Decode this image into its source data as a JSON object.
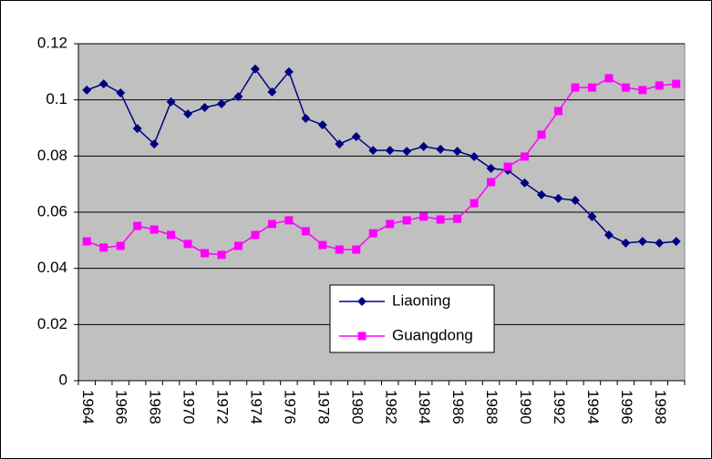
{
  "chart_data": {
    "type": "line",
    "categories": [
      "1964",
      null,
      "1966",
      null,
      "1968",
      null,
      "1970",
      null,
      "1972",
      null,
      "1974",
      null,
      "1976",
      null,
      "1978",
      null,
      "1980",
      null,
      "1982",
      null,
      "1984",
      null,
      "1986",
      null,
      "1988",
      null,
      "1990",
      null,
      "1992",
      null,
      "1994",
      null,
      "1996",
      null,
      "1998",
      null
    ],
    "series": [
      {
        "name": "Liaoning",
        "color": "#000080",
        "values": [
          0.1035,
          0.1057,
          0.1025,
          0.0898,
          0.0843,
          0.0993,
          0.095,
          0.0973,
          0.0986,
          0.1012,
          0.111,
          0.1028,
          0.11,
          0.0934,
          0.0911,
          0.0843,
          0.0869,
          0.082,
          0.082,
          0.0817,
          0.0834,
          0.0824,
          0.0817,
          0.0798,
          0.0756,
          0.0749,
          0.0704,
          0.0662,
          0.0649,
          0.0642,
          0.0584,
          0.0519,
          0.049,
          0.0496,
          0.049,
          0.0496
        ]
      },
      {
        "name": "Guangdong",
        "color": "#ff00ff",
        "values": [
          0.0496,
          0.0474,
          0.048,
          0.0551,
          0.0538,
          0.0519,
          0.0487,
          0.0454,
          0.0448,
          0.048,
          0.0519,
          0.0558,
          0.0571,
          0.0532,
          0.0483,
          0.0467,
          0.0467,
          0.0525,
          0.0558,
          0.0571,
          0.0584,
          0.0574,
          0.0577,
          0.0632,
          0.0707,
          0.0762,
          0.0798,
          0.0876,
          0.096,
          0.1044,
          0.1044,
          0.1077,
          0.1044,
          0.1035,
          0.1051,
          0.1057
        ]
      }
    ],
    "ylim": [
      0,
      0.12
    ],
    "yticks": [
      0,
      0.02,
      0.04,
      0.06,
      0.08,
      0.1,
      0.12
    ],
    "grid": true
  }
}
